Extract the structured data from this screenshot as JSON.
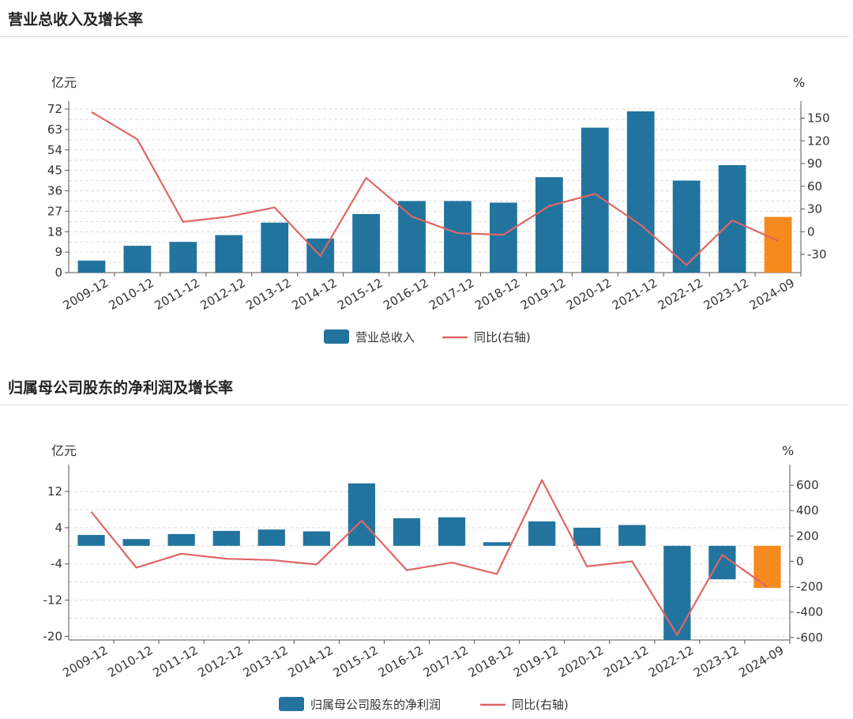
{
  "charts": [
    {
      "heading": "营业总收入及增长率",
      "left_unit": "亿元",
      "right_unit": "%",
      "legend_bar": "营业总收入",
      "legend_line": "同比(右轴)"
    },
    {
      "heading": "归属母公司股东的净利润及增长率",
      "left_unit": "亿元",
      "right_unit": "%",
      "legend_bar": "归属母公司股东的净利润",
      "legend_line": "同比(右轴)"
    }
  ],
  "colors": {
    "bar": "#22749f",
    "bar_highlight": "#f58a1f",
    "line": "#e06666",
    "grid": "#dddddd",
    "axis": "#555555"
  },
  "chart_data": [
    {
      "type": "bar",
      "categories": [
        "2009-12",
        "2010-12",
        "2011-12",
        "2012-12",
        "2013-12",
        "2014-12",
        "2015-12",
        "2016-12",
        "2017-12",
        "2018-12",
        "2019-12",
        "2020-12",
        "2021-12",
        "2022-12",
        "2023-12",
        "2024-09"
      ],
      "series": [
        {
          "name": "营业总收入",
          "type": "bar",
          "axis": "left",
          "values": [
            5.3,
            11.8,
            13.5,
            16.5,
            22.0,
            15.0,
            25.8,
            31.5,
            31.5,
            30.8,
            42.0,
            63.8,
            71.0,
            40.5,
            47.3,
            24.5
          ],
          "highlight_index": 15
        },
        {
          "name": "同比(右轴)",
          "type": "line",
          "axis": "right",
          "values": [
            158,
            122,
            13,
            20,
            32,
            -32,
            71,
            20,
            -2,
            -4,
            34,
            50,
            9,
            -44,
            15,
            -12
          ]
        }
      ],
      "ylim_left": [
        0,
        72
      ],
      "yticks_left": [
        0,
        9,
        18,
        27,
        36,
        45,
        54,
        63,
        72
      ],
      "ylim_right": [
        -54,
        162
      ],
      "yticks_right": [
        -30,
        0,
        30,
        60,
        90,
        120,
        150
      ],
      "grid": true,
      "legend_position": "bottom"
    },
    {
      "type": "bar",
      "categories": [
        "2009-12",
        "2010-12",
        "2011-12",
        "2012-12",
        "2013-12",
        "2014-12",
        "2015-12",
        "2016-12",
        "2017-12",
        "2018-12",
        "2019-12",
        "2020-12",
        "2021-12",
        "2022-12",
        "2023-12",
        "2024-09"
      ],
      "series": [
        {
          "name": "归属母公司股东的净利润",
          "type": "bar",
          "axis": "left",
          "values": [
            2.4,
            1.5,
            2.6,
            3.3,
            3.6,
            3.2,
            13.8,
            6.1,
            6.3,
            0.8,
            5.4,
            4.0,
            4.6,
            -20.8,
            -7.4,
            -9.3
          ],
          "highlight_index": 15
        },
        {
          "name": "同比(右轴)",
          "type": "line",
          "axis": "right",
          "values": [
            390,
            -50,
            60,
            20,
            10,
            -25,
            320,
            -70,
            -10,
            -100,
            640,
            -40,
            0,
            -580,
            50,
            -200
          ]
        }
      ],
      "ylim_left": [
        -20.8,
        16.2
      ],
      "yticks_left": [
        -20,
        -12,
        -4,
        4,
        12
      ],
      "ylim_right": [
        -620,
        700
      ],
      "yticks_right": [
        -600,
        -400,
        -200,
        0,
        200,
        400,
        600
      ],
      "grid": true,
      "legend_position": "bottom"
    }
  ]
}
